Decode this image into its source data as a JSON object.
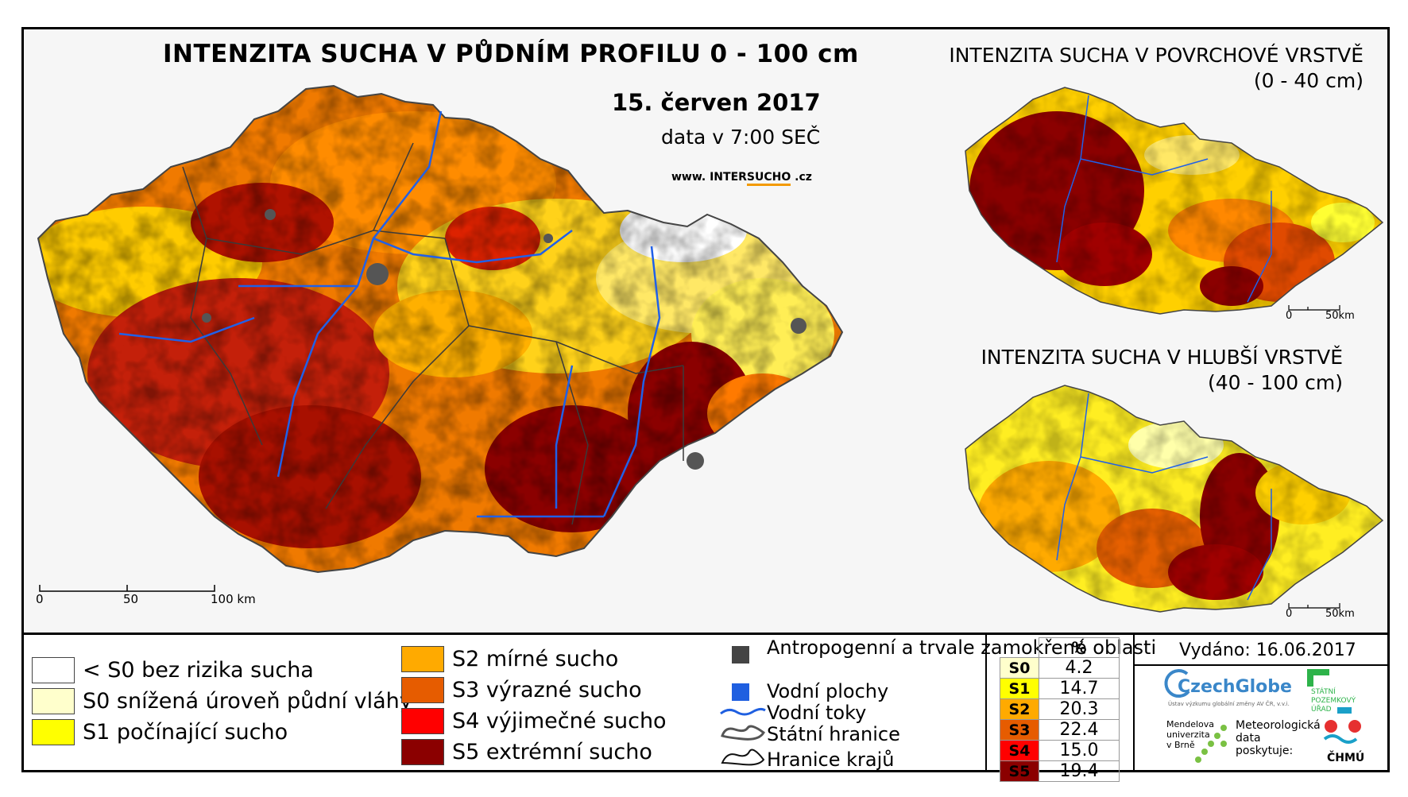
{
  "main_map": {
    "title": "INTENZITA SUCHA V PŮDNÍM PROFILU 0 - 100 cm",
    "date": "15. červen 2017",
    "time": "data v 7:00 SEČ",
    "website_prefix": "www. INTER",
    "website_mid": "SUCHO",
    "website_suffix": " .cz",
    "scalebar": {
      "l0": "0",
      "l1": "50",
      "l2": "100 km"
    }
  },
  "inset_top": {
    "title": "INTENZITA SUCHA V POVRCHOVÉ VRSTVĚ",
    "subtitle": "(0 - 40 cm)",
    "scalebar": {
      "l0": "0",
      "l1": "50km"
    }
  },
  "inset_bottom": {
    "title": "INTENZITA SUCHA V HLUBŠÍ VRSTVĚ",
    "subtitle": "(40 - 100 cm)",
    "scalebar": {
      "l0": "0",
      "l1": "50km"
    }
  },
  "legend": {
    "classes": [
      {
        "label": "< S0 bez rizika sucha",
        "color": "#ffffff"
      },
      {
        "label": "S0 snížená úroveň půdní vláhy",
        "color": "#ffffcc"
      },
      {
        "label": "S1 počínající sucho",
        "color": "#ffff00"
      },
      {
        "label": "S2 mírné sucho",
        "color": "#ffaa00"
      },
      {
        "label": "S3 výrazné sucho",
        "color": "#e65c00"
      },
      {
        "label": "S4 výjimečné sucho",
        "color": "#ff0000"
      },
      {
        "label": "S5 extrémní sucho",
        "color": "#8b0000"
      }
    ],
    "other": [
      {
        "label": "Antropogenní a trvale zamokřené oblasti",
        "icon": "dark-grey-square",
        "color": "#444444"
      },
      {
        "label": "Vodní plochy",
        "icon": "blue-square",
        "color": "#1f5fe0"
      },
      {
        "label": "Vodní toky",
        "icon": "river-line-icon",
        "color": "#1f5fe0"
      },
      {
        "label": "Státní hranice",
        "icon": "state-border-icon"
      },
      {
        "label": "Hranice krajů",
        "icon": "region-border-icon"
      }
    ]
  },
  "percent_table": {
    "header": "%",
    "rows": [
      {
        "cls": "S0",
        "value": "4.2",
        "color": "#ffffcc"
      },
      {
        "cls": "S1",
        "value": "14.7",
        "color": "#ffff00"
      },
      {
        "cls": "S2",
        "value": "20.3",
        "color": "#ffaa00"
      },
      {
        "cls": "S3",
        "value": "22.4",
        "color": "#e65c00"
      },
      {
        "cls": "S4",
        "value": "15.0",
        "color": "#ff0000"
      },
      {
        "cls": "S5",
        "value": "19.4",
        "color": "#8b0000"
      }
    ]
  },
  "issued": "Vydáno: 16.06.2017",
  "logos": {
    "czechglobe": "CzechGlobe",
    "czechglobe_sub": "Ústav výzkumu globální změny AV ČR, v.v.i.",
    "spu": [
      "STÁTNÍ",
      "POZEMKOVÝ",
      "ÚŘAD"
    ],
    "mendel": [
      "Mendelova",
      "univerzita",
      "v Brně"
    ],
    "meteo": [
      "Meteorologická",
      "data",
      "poskytuje:"
    ],
    "chmu": "ČHMÚ"
  }
}
